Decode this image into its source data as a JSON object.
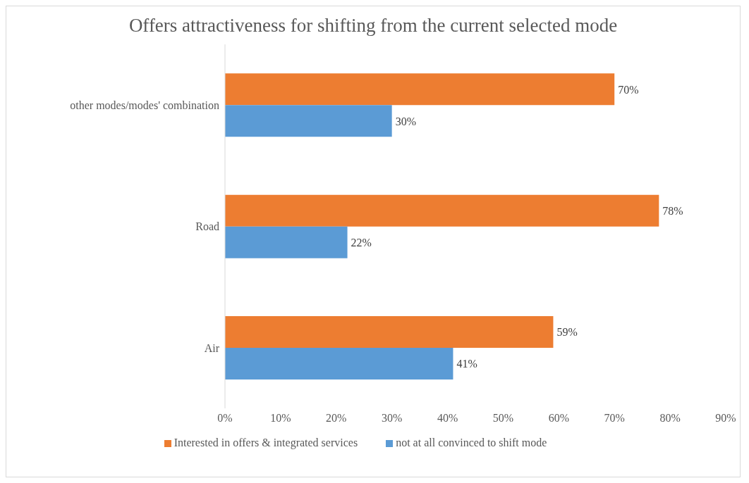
{
  "chart_data": {
    "type": "bar",
    "orientation": "horizontal",
    "title": "Offers attractiveness for shifting from the current selected mode",
    "categories": [
      "other modes/modes' combination",
      "Road",
      "Air"
    ],
    "series": [
      {
        "name": "Interested in offers & integrated services",
        "color": "#ed7d31",
        "values": [
          70,
          78,
          59
        ],
        "value_labels": [
          "70%",
          "78%",
          "59%"
        ]
      },
      {
        "name": "not at all convinced to shift mode",
        "color": "#5b9bd5",
        "values": [
          30,
          22,
          41
        ],
        "value_labels": [
          "30%",
          "22%",
          "41%"
        ]
      }
    ],
    "xlim": [
      0,
      90
    ],
    "xticks": [
      {
        "value": 0,
        "label": "0%"
      },
      {
        "value": 10,
        "label": "10%"
      },
      {
        "value": 20,
        "label": "20%"
      },
      {
        "value": 30,
        "label": "30%"
      },
      {
        "value": 40,
        "label": "40%"
      },
      {
        "value": 50,
        "label": "50%"
      },
      {
        "value": 60,
        "label": "60%"
      },
      {
        "value": 70,
        "label": "70%"
      },
      {
        "value": 80,
        "label": "80%"
      },
      {
        "value": 90,
        "label": "90%"
      }
    ],
    "grid": false,
    "legend": "bottom"
  }
}
